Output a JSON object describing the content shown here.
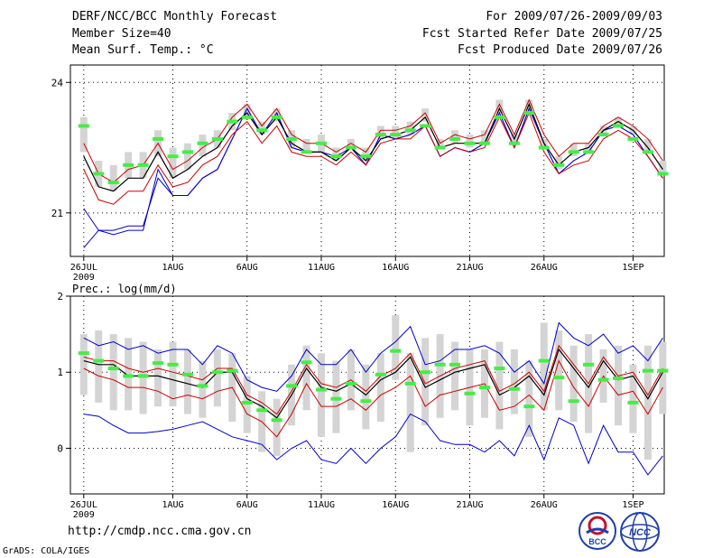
{
  "header": {
    "title": "DERF/NCC/BCC Monthly Forecast",
    "member_size": "Member Size=40",
    "variable": "Mean Surf. Temp.: °C",
    "forecast_range": "For 2009/07/26-2009/09/03",
    "started_date": "Fcst Started Refer Date 2009/07/25",
    "produced_date": "Fcst Produced Date 2009/07/26"
  },
  "footer": {
    "url": "http://cmdp.ncc.cma.gov.cn",
    "grads": "GrADS: COLA/IGES",
    "logo_bcc": "BCC",
    "logo_ncc": "NCC"
  },
  "colors": {
    "max_min": "#0000cc",
    "ensemble_mean": "#000000",
    "spread": "#cc0000",
    "observed_mark": "#44ee44",
    "box": "#d4d4d4",
    "grid": "#000000"
  },
  "chart_data": [
    {
      "type": "line",
      "title": "Mean Surf. Temp.: °C",
      "x_tick_labels": [
        "26JUL",
        "1AUG",
        "6AUG",
        "11AUG",
        "16AUG",
        "21AUG",
        "26AUG",
        "1SEP"
      ],
      "x_tick_days": [
        0,
        6,
        11,
        16,
        21,
        26,
        31,
        37
      ],
      "x_sublabel": "2009",
      "ylim": [
        20,
        24.4
      ],
      "yticks": [
        21,
        24
      ],
      "n_days": 40,
      "series": [
        {
          "name": "max",
          "values": [
            21.1,
            20.6,
            20.6,
            20.7,
            20.7,
            21.8,
            21.4,
            21.4,
            21.8,
            22.0,
            22.7,
            23.4,
            22.8,
            23.3,
            22.5,
            22.4,
            22.4,
            22.3,
            22.5,
            22.1,
            22.8,
            22.7,
            22.8,
            23.0,
            22.3,
            22.5,
            22.4,
            22.6,
            23.3,
            22.5,
            23.4,
            22.6,
            21.9,
            22.2,
            22.4,
            22.9,
            23.0,
            22.8,
            22.3,
            21.8
          ]
        },
        {
          "name": "upper",
          "values": [
            22.6,
            21.9,
            21.7,
            22.0,
            22.1,
            22.6,
            22.0,
            22.2,
            22.5,
            22.7,
            23.2,
            23.5,
            23.0,
            23.4,
            22.8,
            22.6,
            22.6,
            22.4,
            22.6,
            22.4,
            22.9,
            22.9,
            23.0,
            23.3,
            22.6,
            22.8,
            22.7,
            22.8,
            23.5,
            22.8,
            23.6,
            22.8,
            22.3,
            22.6,
            22.6,
            23.0,
            23.2,
            23.0,
            22.7,
            22.2
          ]
        },
        {
          "name": "mean",
          "values": [
            22.3,
            21.6,
            21.5,
            21.8,
            21.8,
            22.4,
            21.8,
            22.0,
            22.3,
            22.5,
            23.0,
            23.3,
            22.8,
            23.2,
            22.6,
            22.4,
            22.4,
            22.2,
            22.5,
            22.2,
            22.7,
            22.8,
            22.9,
            23.2,
            22.5,
            22.6,
            22.6,
            22.6,
            23.4,
            22.7,
            23.5,
            22.6,
            22.1,
            22.4,
            22.5,
            22.9,
            23.1,
            22.9,
            22.5,
            22.0
          ]
        },
        {
          "name": "lower",
          "values": [
            22.0,
            21.3,
            21.2,
            21.5,
            21.5,
            22.1,
            21.6,
            21.7,
            22.1,
            22.3,
            22.8,
            23.1,
            22.6,
            23.0,
            22.4,
            22.3,
            22.3,
            22.1,
            22.4,
            22.1,
            22.6,
            22.7,
            22.7,
            23.0,
            22.3,
            22.5,
            22.4,
            22.5,
            23.2,
            22.5,
            23.3,
            22.4,
            21.9,
            22.1,
            22.2,
            22.7,
            22.9,
            22.7,
            22.3,
            21.8
          ]
        },
        {
          "name": "min",
          "values": [
            20.2,
            20.6,
            20.5,
            20.6,
            20.6,
            22.0,
            21.4,
            21.4,
            21.8,
            22.0,
            22.7,
            23.4,
            22.8,
            23.3,
            22.5,
            22.4,
            22.4,
            22.2,
            22.5,
            22.1,
            22.8,
            22.7,
            22.8,
            23.0,
            22.3,
            22.5,
            22.4,
            22.6,
            23.3,
            22.5,
            23.4,
            22.6,
            21.9,
            22.2,
            22.4,
            22.9,
            23.0,
            22.8,
            22.3,
            21.8
          ]
        },
        {
          "name": "marker",
          "values": [
            23.0,
            21.9,
            21.7,
            22.1,
            22.1,
            22.7,
            22.3,
            22.4,
            22.6,
            22.7,
            23.1,
            23.2,
            22.9,
            23.2,
            22.7,
            22.4,
            22.6,
            22.3,
            22.5,
            22.3,
            22.8,
            22.8,
            22.9,
            23.0,
            22.5,
            22.7,
            22.6,
            22.6,
            23.2,
            22.6,
            23.3,
            22.5,
            22.1,
            22.4,
            22.4,
            22.8,
            23.0,
            22.7,
            22.4,
            21.9
          ]
        },
        {
          "name": "box_low",
          "values": [
            22.4,
            21.6,
            21.5,
            21.8,
            21.8,
            22.3,
            21.8,
            22.0,
            22.3,
            22.5,
            22.9,
            23.2,
            22.8,
            23.1,
            22.5,
            22.4,
            22.4,
            22.2,
            22.5,
            22.2,
            22.7,
            22.7,
            22.8,
            23.1,
            22.5,
            22.6,
            22.5,
            22.6,
            23.3,
            22.6,
            23.4,
            22.5,
            22.0,
            22.3,
            22.4,
            22.8,
            23.0,
            22.8,
            22.4,
            21.9
          ]
        },
        {
          "name": "box_high",
          "values": [
            23.2,
            22.2,
            22.1,
            22.4,
            22.4,
            22.9,
            22.5,
            22.6,
            22.8,
            22.9,
            23.3,
            23.5,
            23.1,
            23.4,
            22.9,
            22.7,
            22.8,
            22.5,
            22.7,
            22.5,
            23.0,
            23.0,
            23.1,
            23.4,
            22.7,
            22.9,
            22.8,
            22.9,
            23.6,
            22.8,
            23.6,
            22.7,
            22.3,
            22.6,
            22.6,
            23.0,
            23.2,
            23.0,
            22.7,
            22.2
          ]
        }
      ]
    },
    {
      "type": "line",
      "title": "Prec.: log(mm/d)",
      "x_tick_labels": [
        "26JUL",
        "1AUG",
        "6AUG",
        "11AUG",
        "16AUG",
        "21AUG",
        "26AUG",
        "1SEP"
      ],
      "x_tick_days": [
        0,
        6,
        11,
        16,
        21,
        26,
        31,
        37
      ],
      "x_sublabel": "2009",
      "ylim": [
        -0.6,
        2
      ],
      "yticks": [
        0,
        1,
        2
      ],
      "n_days": 40,
      "series": [
        {
          "name": "max",
          "values": [
            1.45,
            1.35,
            1.4,
            1.3,
            1.35,
            1.25,
            1.3,
            1.3,
            1.1,
            1.35,
            1.25,
            0.9,
            0.8,
            0.75,
            0.95,
            1.3,
            1.1,
            1.1,
            1.3,
            1.0,
            1.25,
            1.4,
            1.6,
            1.1,
            1.15,
            1.3,
            1.3,
            1.35,
            1.25,
            1.0,
            1.15,
            0.85,
            1.65,
            1.45,
            1.35,
            1.5,
            1.25,
            1.35,
            1.15,
            1.45
          ]
        },
        {
          "name": "upper",
          "values": [
            1.2,
            1.15,
            1.15,
            1.05,
            1.0,
            1.05,
            1.0,
            0.95,
            0.9,
            1.05,
            1.05,
            0.7,
            0.6,
            0.45,
            0.75,
            1.1,
            0.85,
            0.8,
            0.9,
            0.75,
            0.95,
            1.05,
            1.25,
            0.85,
            0.95,
            1.05,
            1.1,
            1.15,
            0.75,
            0.85,
            1.0,
            0.75,
            1.35,
            1.1,
            0.85,
            1.2,
            0.95,
            1.0,
            0.7,
            1.05
          ]
        },
        {
          "name": "mean",
          "values": [
            1.15,
            1.1,
            1.1,
            0.95,
            0.95,
            0.95,
            0.9,
            0.85,
            0.8,
            1.0,
            1.0,
            0.65,
            0.55,
            0.4,
            0.7,
            1.05,
            0.8,
            0.75,
            0.85,
            0.7,
            0.9,
            1.0,
            1.2,
            0.8,
            0.9,
            1.0,
            1.05,
            1.1,
            0.7,
            0.8,
            0.95,
            0.7,
            1.3,
            1.05,
            0.8,
            1.15,
            0.9,
            0.95,
            0.65,
            1.0
          ]
        },
        {
          "name": "lower",
          "values": [
            1.05,
            0.95,
            0.9,
            0.8,
            0.8,
            0.75,
            0.65,
            0.7,
            0.65,
            0.75,
            0.8,
            0.45,
            0.35,
            0.15,
            0.45,
            0.85,
            0.55,
            0.55,
            0.65,
            0.5,
            0.7,
            0.8,
            0.95,
            0.55,
            0.7,
            0.75,
            0.8,
            0.85,
            0.5,
            0.55,
            0.7,
            0.5,
            1.15,
            0.8,
            0.55,
            0.95,
            0.7,
            0.75,
            0.45,
            0.8
          ]
        },
        {
          "name": "min",
          "values": [
            0.45,
            0.42,
            0.3,
            0.2,
            0.2,
            0.22,
            0.25,
            0.3,
            0.35,
            0.25,
            0.15,
            0.1,
            0.05,
            -0.15,
            0.0,
            0.1,
            -0.15,
            -0.2,
            0.0,
            -0.2,
            0.0,
            0.15,
            0.45,
            0.35,
            0.1,
            0.05,
            0.05,
            -0.05,
            0.1,
            -0.1,
            0.3,
            -0.15,
            0.4,
            0.3,
            -0.2,
            0.3,
            -0.05,
            -0.05,
            -0.35,
            -0.1
          ]
        },
        {
          "name": "marker",
          "values": [
            1.25,
            1.15,
            1.05,
            0.95,
            0.95,
            1.12,
            1.1,
            0.97,
            0.82,
            1.0,
            1.02,
            0.6,
            0.5,
            0.37,
            0.82,
            1.13,
            0.77,
            0.65,
            0.85,
            0.62,
            0.97,
            1.28,
            0.85,
            1.0,
            1.1,
            1.1,
            0.72,
            0.8,
            1.05,
            0.78,
            0.55,
            1.15,
            0.93,
            0.62,
            1.1,
            0.9,
            0.92,
            0.6,
            1.02,
            1.02
          ]
        },
        {
          "name": "box_low",
          "values": [
            0.7,
            0.6,
            0.5,
            0.5,
            0.45,
            0.55,
            0.55,
            0.45,
            0.4,
            0.55,
            0.35,
            0.2,
            -0.05,
            -0.1,
            0.3,
            0.5,
            0.15,
            0.2,
            0.5,
            0.25,
            0.35,
            0.9,
            -0.05,
            0.3,
            0.4,
            0.5,
            0.3,
            0.4,
            0.25,
            0.45,
            0.15,
            0.5,
            0.5,
            0.35,
            0.2,
            0.6,
            0.3,
            0.2,
            -0.15,
            0.45
          ]
        },
        {
          "name": "box_high",
          "values": [
            1.5,
            1.55,
            1.5,
            1.45,
            1.4,
            1.3,
            1.4,
            1.3,
            1.15,
            1.3,
            1.25,
            0.95,
            0.75,
            0.65,
            1.1,
            1.35,
            1.25,
            1.15,
            1.3,
            1.1,
            1.25,
            1.75,
            1.25,
            1.45,
            1.5,
            1.4,
            1.3,
            1.3,
            1.4,
            1.3,
            1.15,
            1.65,
            1.55,
            1.35,
            1.5,
            1.3,
            1.35,
            1.1,
            1.35,
            1.4
          ]
        }
      ]
    }
  ]
}
